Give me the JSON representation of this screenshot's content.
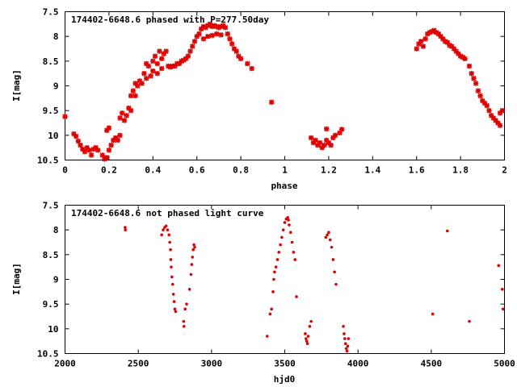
{
  "chart_data": [
    {
      "type": "scatter",
      "title": "174402-6648.6 phased with P=277.50day",
      "xlabel": "phase",
      "ylabel": "I[mag]",
      "xlim": [
        0,
        2
      ],
      "ylim": [
        10.5,
        7.5
      ],
      "y_inverted": true,
      "xticks": [
        "0",
        "0.2",
        "0.4",
        "0.6",
        "0.8",
        "1",
        "1.2",
        "1.4",
        "1.6",
        "1.8",
        "2"
      ],
      "yticks": [
        "7.5",
        "8",
        "8.5",
        "9",
        "9.5",
        "10",
        "10.5"
      ],
      "grid": false,
      "marker_color": "#e00000",
      "series": [
        {
          "points": [
            [
              0.0,
              9.62
            ],
            [
              0.04,
              9.97
            ],
            [
              0.05,
              10.02
            ],
            [
              0.06,
              10.12
            ],
            [
              0.07,
              10.2
            ],
            [
              0.08,
              10.28
            ],
            [
              0.09,
              10.33
            ],
            [
              0.1,
              10.25
            ],
            [
              0.11,
              10.3
            ],
            [
              0.12,
              10.4
            ],
            [
              0.13,
              10.28
            ],
            [
              0.14,
              10.25
            ],
            [
              0.15,
              10.3
            ],
            [
              0.17,
              10.4
            ],
            [
              0.18,
              10.48
            ],
            [
              0.19,
              10.45
            ],
            [
              0.19,
              9.9
            ],
            [
              0.2,
              9.85
            ],
            [
              0.2,
              10.3
            ],
            [
              0.21,
              10.2
            ],
            [
              0.22,
              10.1
            ],
            [
              0.23,
              10.05
            ],
            [
              0.24,
              10.1
            ],
            [
              0.25,
              9.65
            ],
            [
              0.25,
              10.0
            ],
            [
              0.26,
              9.55
            ],
            [
              0.27,
              9.7
            ],
            [
              0.28,
              9.6
            ],
            [
              0.29,
              9.45
            ],
            [
              0.3,
              9.5
            ],
            [
              0.3,
              9.2
            ],
            [
              0.31,
              9.1
            ],
            [
              0.32,
              9.2
            ],
            [
              0.32,
              8.95
            ],
            [
              0.33,
              9.0
            ],
            [
              0.34,
              8.9
            ],
            [
              0.35,
              8.95
            ],
            [
              0.36,
              8.75
            ],
            [
              0.37,
              8.55
            ],
            [
              0.37,
              8.85
            ],
            [
              0.38,
              8.6
            ],
            [
              0.39,
              8.8
            ],
            [
              0.4,
              8.5
            ],
            [
              0.4,
              8.7
            ],
            [
              0.41,
              8.4
            ],
            [
              0.42,
              8.55
            ],
            [
              0.42,
              8.75
            ],
            [
              0.43,
              8.3
            ],
            [
              0.44,
              8.45
            ],
            [
              0.44,
              8.65
            ],
            [
              0.45,
              8.35
            ],
            [
              0.46,
              8.3
            ],
            [
              0.47,
              8.6
            ],
            [
              0.48,
              8.62
            ],
            [
              0.49,
              8.6
            ],
            [
              0.5,
              8.6
            ],
            [
              0.51,
              8.55
            ],
            [
              0.52,
              8.55
            ],
            [
              0.53,
              8.5
            ],
            [
              0.54,
              8.48
            ],
            [
              0.55,
              8.45
            ],
            [
              0.56,
              8.4
            ],
            [
              0.57,
              8.3
            ],
            [
              0.58,
              8.2
            ],
            [
              0.59,
              8.1
            ],
            [
              0.6,
              8.0
            ],
            [
              0.61,
              7.95
            ],
            [
              0.62,
              7.85
            ],
            [
              0.63,
              7.8
            ],
            [
              0.64,
              7.82
            ],
            [
              0.65,
              7.78
            ],
            [
              0.66,
              7.75
            ],
            [
              0.67,
              7.8
            ],
            [
              0.68,
              7.78
            ],
            [
              0.69,
              7.8
            ],
            [
              0.7,
              7.82
            ],
            [
              0.71,
              7.8
            ],
            [
              0.72,
              7.78
            ],
            [
              0.73,
              7.82
            ],
            [
              0.63,
              8.05
            ],
            [
              0.65,
              8.0
            ],
            [
              0.67,
              7.98
            ],
            [
              0.69,
              7.95
            ],
            [
              0.71,
              7.97
            ],
            [
              0.74,
              7.95
            ],
            [
              0.75,
              8.05
            ],
            [
              0.76,
              8.15
            ],
            [
              0.77,
              8.25
            ],
            [
              0.78,
              8.3
            ],
            [
              0.79,
              8.4
            ],
            [
              0.8,
              8.45
            ],
            [
              0.83,
              8.55
            ],
            [
              0.85,
              8.65
            ],
            [
              0.94,
              9.33
            ],
            [
              1.12,
              10.05
            ],
            [
              1.13,
              10.15
            ],
            [
              1.14,
              10.1
            ],
            [
              1.15,
              10.2
            ],
            [
              1.16,
              10.15
            ],
            [
              1.17,
              10.25
            ],
            [
              1.18,
              10.2
            ],
            [
              1.19,
              10.1
            ],
            [
              1.19,
              9.87
            ],
            [
              1.2,
              10.15
            ],
            [
              1.21,
              10.2
            ],
            [
              1.22,
              10.05
            ],
            [
              1.23,
              10.0
            ],
            [
              1.25,
              9.95
            ],
            [
              1.26,
              9.88
            ],
            [
              1.6,
              8.25
            ],
            [
              1.61,
              8.15
            ],
            [
              1.62,
              8.1
            ],
            [
              1.63,
              8.2
            ],
            [
              1.64,
              8.05
            ],
            [
              1.65,
              7.95
            ],
            [
              1.66,
              7.92
            ],
            [
              1.67,
              7.9
            ],
            [
              1.68,
              7.88
            ],
            [
              1.69,
              7.92
            ],
            [
              1.7,
              7.95
            ],
            [
              1.71,
              8.0
            ],
            [
              1.72,
              8.05
            ],
            [
              1.73,
              8.1
            ],
            [
              1.74,
              8.12
            ],
            [
              1.75,
              8.18
            ],
            [
              1.76,
              8.2
            ],
            [
              1.77,
              8.25
            ],
            [
              1.78,
              8.3
            ],
            [
              1.79,
              8.35
            ],
            [
              1.8,
              8.4
            ],
            [
              1.81,
              8.42
            ],
            [
              1.82,
              8.45
            ],
            [
              1.84,
              8.6
            ],
            [
              1.85,
              8.75
            ],
            [
              1.86,
              8.85
            ],
            [
              1.87,
              8.95
            ],
            [
              1.88,
              9.1
            ],
            [
              1.89,
              9.2
            ],
            [
              1.9,
              9.3
            ],
            [
              1.91,
              9.35
            ],
            [
              1.92,
              9.4
            ],
            [
              1.93,
              9.5
            ],
            [
              1.94,
              9.6
            ],
            [
              1.95,
              9.65
            ],
            [
              1.96,
              9.7
            ],
            [
              1.97,
              9.75
            ],
            [
              1.98,
              9.8
            ],
            [
              1.98,
              9.55
            ],
            [
              1.99,
              9.5
            ]
          ]
        }
      ]
    },
    {
      "type": "scatter",
      "title": "174402-6648.6 not phased light curve",
      "xlabel": "hjd0",
      "ylabel": "I[mag]",
      "xlim": [
        2000,
        5000
      ],
      "ylim": [
        10.5,
        7.5
      ],
      "y_inverted": true,
      "xticks": [
        "2000",
        "2500",
        "3000",
        "3500",
        "4000",
        "4500",
        "5000"
      ],
      "yticks": [
        "7.5",
        "8",
        "8.5",
        "9",
        "9.5",
        "10",
        "10.5"
      ],
      "grid": false,
      "marker_color": "#e00000",
      "series": [
        {
          "points": [
            [
              2410,
              7.95
            ],
            [
              2412,
              8.0
            ],
            [
              2660,
              8.1
            ],
            [
              2670,
              8.0
            ],
            [
              2680,
              7.95
            ],
            [
              2690,
              7.92
            ],
            [
              2700,
              8.0
            ],
            [
              2710,
              8.1
            ],
            [
              2715,
              8.25
            ],
            [
              2720,
              8.4
            ],
            [
              2722,
              8.6
            ],
            [
              2725,
              8.75
            ],
            [
              2730,
              8.95
            ],
            [
              2735,
              9.1
            ],
            [
              2740,
              9.3
            ],
            [
              2745,
              9.45
            ],
            [
              2750,
              9.6
            ],
            [
              2755,
              9.65
            ],
            [
              2810,
              9.85
            ],
            [
              2812,
              9.95
            ],
            [
              2820,
              9.6
            ],
            [
              2830,
              9.5
            ],
            [
              2850,
              9.2
            ],
            [
              2860,
              8.9
            ],
            [
              2865,
              8.7
            ],
            [
              2870,
              8.55
            ],
            [
              2875,
              8.4
            ],
            [
              2880,
              8.3
            ],
            [
              2885,
              8.35
            ],
            [
              3380,
              10.15
            ],
            [
              3400,
              9.7
            ],
            [
              3410,
              9.6
            ],
            [
              3420,
              9.25
            ],
            [
              3425,
              9.0
            ],
            [
              3430,
              8.85
            ],
            [
              3440,
              8.75
            ],
            [
              3450,
              8.6
            ],
            [
              3460,
              8.45
            ],
            [
              3470,
              8.3
            ],
            [
              3480,
              8.15
            ],
            [
              3490,
              8.0
            ],
            [
              3500,
              7.85
            ],
            [
              3510,
              7.78
            ],
            [
              3520,
              7.75
            ],
            [
              3525,
              7.8
            ],
            [
              3530,
              7.9
            ],
            [
              3540,
              8.05
            ],
            [
              3550,
              8.25
            ],
            [
              3560,
              8.45
            ],
            [
              3570,
              8.6
            ],
            [
              3580,
              9.35
            ],
            [
              3640,
              10.1
            ],
            [
              3645,
              10.2
            ],
            [
              3650,
              10.25
            ],
            [
              3655,
              10.3
            ],
            [
              3660,
              10.15
            ],
            [
              3670,
              9.95
            ],
            [
              3680,
              9.85
            ],
            [
              3780,
              8.15
            ],
            [
              3790,
              8.1
            ],
            [
              3800,
              8.05
            ],
            [
              3810,
              8.2
            ],
            [
              3820,
              8.35
            ],
            [
              3830,
              8.6
            ],
            [
              3840,
              8.85
            ],
            [
              3850,
              9.1
            ],
            [
              3900,
              9.95
            ],
            [
              3905,
              10.1
            ],
            [
              3910,
              10.2
            ],
            [
              3915,
              10.3
            ],
            [
              3920,
              10.4
            ],
            [
              3925,
              10.45
            ],
            [
              3930,
              10.35
            ],
            [
              3935,
              10.2
            ],
            [
              4510,
              9.7
            ],
            [
              4610,
              8.02
            ],
            [
              4760,
              9.85
            ],
            [
              4960,
              8.72
            ],
            [
              4985,
              9.2
            ],
            [
              4990,
              9.6
            ]
          ]
        }
      ]
    }
  ]
}
